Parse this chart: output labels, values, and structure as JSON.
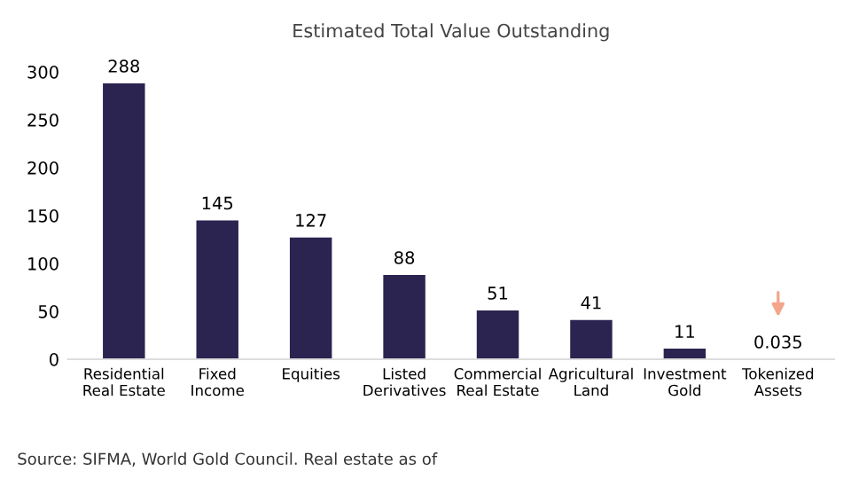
{
  "chart_data": {
    "type": "bar",
    "title": "Estimated Total Value Outstanding",
    "categories": [
      "Residential\nReal Estate",
      "Fixed\nIncome",
      "Equities",
      "Listed\nDerivatives",
      "Commercial\nReal Estate",
      "Agricultural\nLand",
      "Investment\nGold",
      "Tokenized\nAssets"
    ],
    "values": [
      288,
      145,
      127,
      88,
      51,
      41,
      11,
      0.035
    ],
    "color": "#2b2350",
    "ylim": [
      0,
      300
    ],
    "yticks": [
      0,
      50,
      100,
      150,
      200,
      250,
      300
    ],
    "data_labels": true,
    "grid": false,
    "annotations": [
      "Source: SIFMA, World Gold Council. Real estate as of"
    ]
  }
}
